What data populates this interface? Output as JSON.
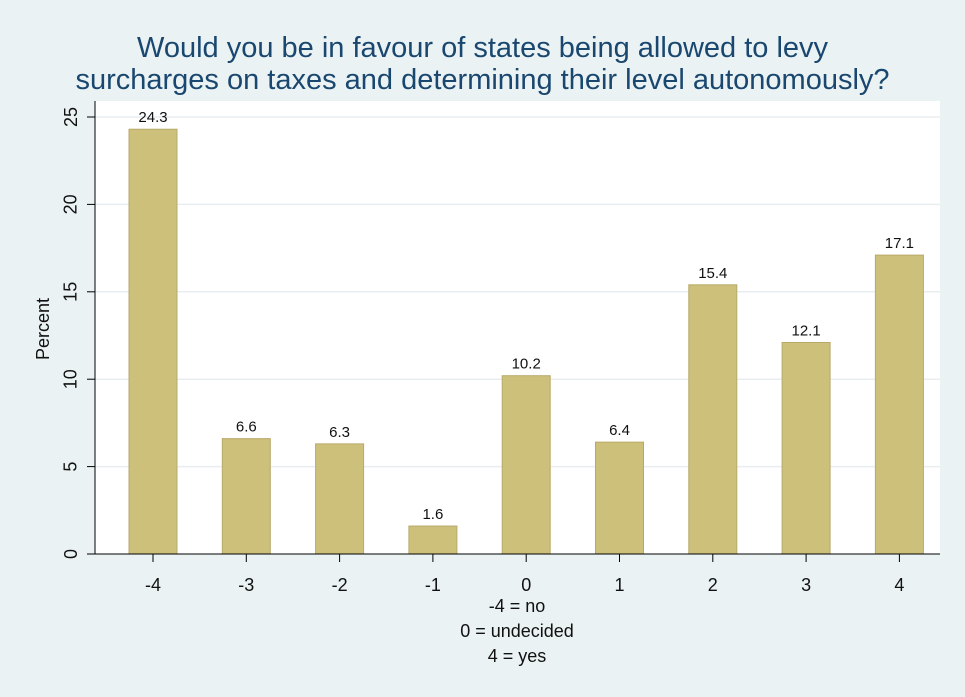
{
  "title": {
    "line1": "Would you be in favour of states being allowed to levy",
    "line2": "surcharges on taxes and determining their level autonomously?"
  },
  "colors": {
    "background": "#eaf2f3",
    "plot_background": "#ffffff",
    "bar_fill": "#cdc07b",
    "bar_stroke": "#b8a96a",
    "title": "#1a476f",
    "grid": "#e8eef0"
  },
  "chart_data": {
    "type": "bar",
    "title": "Would you be in favour of states being allowed to levy surcharges on taxes and determining their level autonomously?",
    "categories": [
      "-4",
      "-3",
      "-2",
      "-1",
      "0",
      "1",
      "2",
      "3",
      "4"
    ],
    "values": [
      24.3,
      6.6,
      6.3,
      1.6,
      10.2,
      6.4,
      15.4,
      12.1,
      17.1
    ],
    "data_labels": [
      "24.3",
      "6.6",
      "6.3",
      "1.6",
      "10.2",
      "6.4",
      "15.4",
      "12.1",
      "17.1"
    ],
    "ylabel": "Percent",
    "xlabel_lines": [
      "-4 = no",
      "0 = undecided",
      "4 = yes"
    ],
    "ylim": [
      0,
      25
    ],
    "yticks": [
      0,
      5,
      10,
      15,
      20,
      25
    ],
    "grid": true
  }
}
